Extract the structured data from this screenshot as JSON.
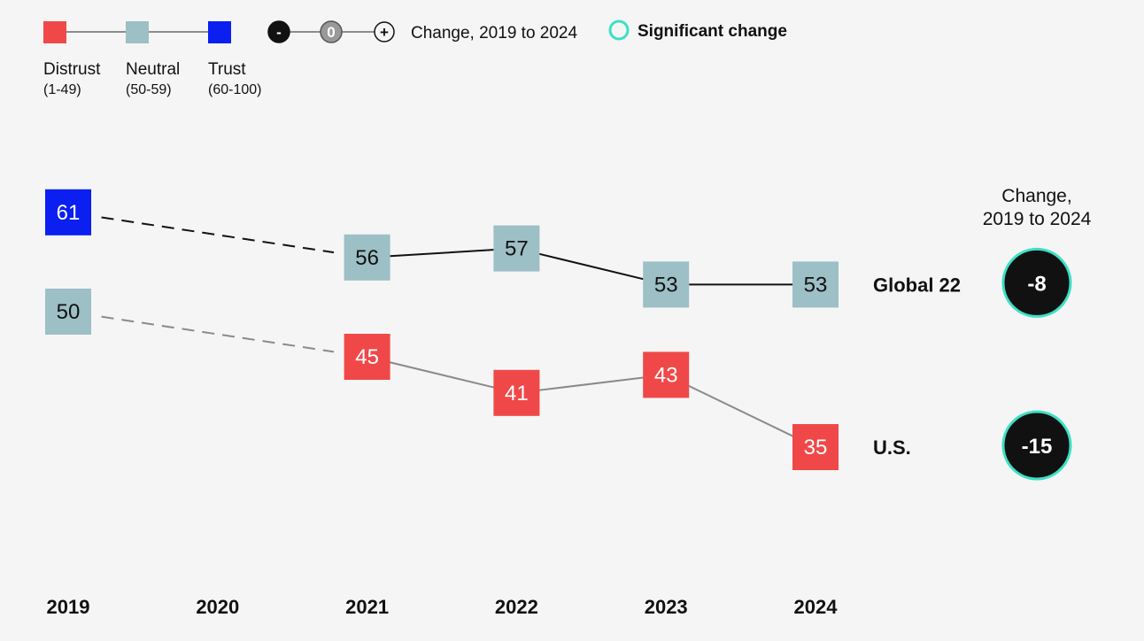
{
  "legend": {
    "categories": [
      {
        "label": "Distrust",
        "range": "(1-49)",
        "color": "#f04848"
      },
      {
        "label": "Neutral",
        "range": "(50-59)",
        "color": "#9dbfc6"
      },
      {
        "label": "Trust",
        "range": "(60-100)",
        "color": "#0a1ff0"
      }
    ],
    "change_symbols": [
      "-",
      "0",
      "+"
    ],
    "change_label": "Change, 2019 to 2024",
    "significant_label": "Significant change",
    "significant_color": "#3de0c4"
  },
  "change_header": [
    "Change,",
    "2019 to 2024"
  ],
  "chart_data": {
    "type": "line",
    "x": [
      "2019",
      "2020",
      "2021",
      "2022",
      "2023",
      "2024"
    ],
    "series": [
      {
        "name": "Global 22",
        "values": [
          61,
          null,
          56,
          57,
          53,
          53
        ],
        "labels": [
          "61",
          "",
          "56",
          "57",
          "53",
          "53"
        ],
        "change": "-8",
        "significant": true,
        "line_color": "#111111",
        "gap_line_color": "#111111"
      },
      {
        "name": "U.S.",
        "values": [
          50,
          null,
          45,
          41,
          43,
          35
        ],
        "labels": [
          "50",
          "",
          "45",
          "41",
          "43",
          "35"
        ],
        "change": "-15",
        "significant": true,
        "line_color": "#8a8a8a",
        "gap_line_color": "#8a8a8a"
      }
    ],
    "category_thresholds": {
      "distrust": [
        1,
        49
      ],
      "neutral": [
        50,
        59
      ],
      "trust": [
        60,
        100
      ]
    },
    "colors": {
      "distrust": "#f04848",
      "neutral": "#9dbfc6",
      "trust": "#0a1ff0"
    }
  }
}
